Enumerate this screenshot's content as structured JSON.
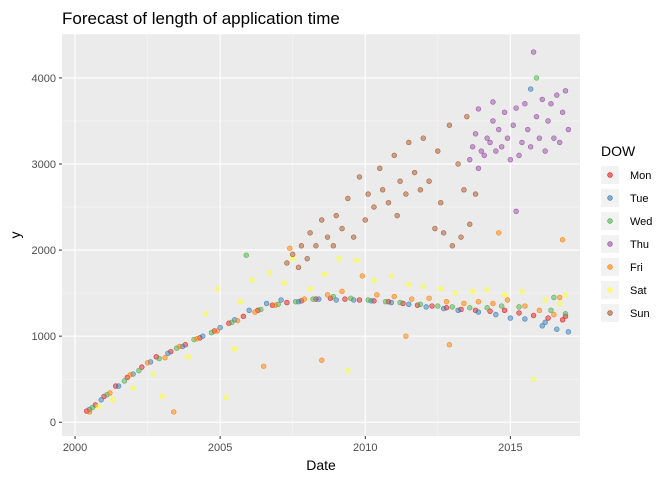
{
  "colors": {
    "panel_bg": "#EBEBEB",
    "grid_major": "#FFFFFF",
    "grid_minor": "#F5F5F5",
    "tick_mark": "#333333"
  },
  "chart_data": {
    "type": "scatter",
    "title": "Forecast of length of application time",
    "xlabel": "Date",
    "ylabel": "y",
    "xlim": [
      1999.55,
      2017.4
    ],
    "ylim": [
      -160,
      4510
    ],
    "x_ticks": [
      "2000",
      "2005",
      "2010",
      "2015"
    ],
    "x_tick_values": [
      2000,
      2005,
      2010,
      2015
    ],
    "y_ticks": [
      "0",
      "1000",
      "2000",
      "3000",
      "4000"
    ],
    "y_tick_values": [
      0,
      1000,
      2000,
      3000,
      4000
    ],
    "grid": true,
    "legend": {
      "title": "DOW",
      "position": "right"
    },
    "point_opacity": 0.5,
    "series": [
      {
        "name": "Mon",
        "color": "#E41A1C",
        "points": [
          [
            2000.4,
            130
          ],
          [
            2000.7,
            200
          ],
          [
            2001.0,
            300
          ],
          [
            2001.4,
            420
          ],
          [
            2001.8,
            520
          ],
          [
            2002.3,
            640
          ],
          [
            2002.8,
            760
          ],
          [
            2003.3,
            820
          ],
          [
            2003.8,
            900
          ],
          [
            2004.3,
            980
          ],
          [
            2004.8,
            1060
          ],
          [
            2005.3,
            1150
          ],
          [
            2005.8,
            1230
          ],
          [
            2006.3,
            1300
          ],
          [
            2006.8,
            1360
          ],
          [
            2007.3,
            1390
          ],
          [
            2007.8,
            1410
          ],
          [
            2008.3,
            1430
          ],
          [
            2008.8,
            1440
          ],
          [
            2009.3,
            1430
          ],
          [
            2009.8,
            1420
          ],
          [
            2010.3,
            1410
          ],
          [
            2010.8,
            1400
          ],
          [
            2011.3,
            1380
          ],
          [
            2011.8,
            1360
          ],
          [
            2012.3,
            1350
          ],
          [
            2012.8,
            1330
          ],
          [
            2013.3,
            1310
          ],
          [
            2013.8,
            1300
          ],
          [
            2014.3,
            1290
          ],
          [
            2014.8,
            1300
          ],
          [
            2015.3,
            1270
          ],
          [
            2015.8,
            1240
          ],
          [
            2016.3,
            1210
          ],
          [
            2016.8,
            1190
          ],
          [
            2016.9,
            1230
          ]
        ]
      },
      {
        "name": "Tue",
        "color": "#377EB8",
        "points": [
          [
            2000.5,
            150
          ],
          [
            2000.9,
            260
          ],
          [
            2001.5,
            420
          ],
          [
            2002.0,
            560
          ],
          [
            2002.6,
            700
          ],
          [
            2003.2,
            800
          ],
          [
            2003.7,
            880
          ],
          [
            2004.4,
            1000
          ],
          [
            2005.0,
            1100
          ],
          [
            2005.5,
            1190
          ],
          [
            2006.0,
            1300
          ],
          [
            2006.6,
            1380
          ],
          [
            2007.1,
            1420
          ],
          [
            2007.7,
            1400
          ],
          [
            2008.4,
            1430
          ],
          [
            2009.0,
            1420
          ],
          [
            2009.6,
            1420
          ],
          [
            2010.2,
            1410
          ],
          [
            2010.9,
            1390
          ],
          [
            2011.5,
            1370
          ],
          [
            2012.1,
            1340
          ],
          [
            2012.7,
            1320
          ],
          [
            2013.2,
            1300
          ],
          [
            2013.9,
            1280
          ],
          [
            2014.5,
            1250
          ],
          [
            2015.0,
            1210
          ],
          [
            2015.5,
            1200
          ],
          [
            2015.7,
            3870
          ],
          [
            2016.1,
            1120
          ],
          [
            2016.6,
            1080
          ],
          [
            2017.0,
            1050
          ],
          [
            2016.2,
            1160
          ]
        ]
      },
      {
        "name": "Wed",
        "color": "#4DAF4A",
        "points": [
          [
            2000.6,
            170
          ],
          [
            2001.1,
            320
          ],
          [
            2001.7,
            480
          ],
          [
            2002.2,
            600
          ],
          [
            2002.9,
            740
          ],
          [
            2003.5,
            860
          ],
          [
            2004.1,
            960
          ],
          [
            2004.7,
            1040
          ],
          [
            2005.4,
            1160
          ],
          [
            2005.9,
            1940
          ],
          [
            2006.4,
            1310
          ],
          [
            2007.0,
            1370
          ],
          [
            2007.6,
            1400
          ],
          [
            2008.2,
            1430
          ],
          [
            2008.9,
            1460
          ],
          [
            2009.5,
            1440
          ],
          [
            2010.1,
            1420
          ],
          [
            2010.7,
            1400
          ],
          [
            2011.2,
            1390
          ],
          [
            2011.9,
            1370
          ],
          [
            2012.5,
            1350
          ],
          [
            2013.0,
            1340
          ],
          [
            2013.6,
            1330
          ],
          [
            2014.2,
            1330
          ],
          [
            2014.7,
            1350
          ],
          [
            2015.3,
            1340
          ],
          [
            2015.9,
            4000
          ],
          [
            2016.4,
            1300
          ],
          [
            2016.9,
            1260
          ],
          [
            2016.5,
            1450
          ]
        ]
      },
      {
        "name": "Thu",
        "color": "#984EA3",
        "points": [
          [
            2013.6,
            3050
          ],
          [
            2013.7,
            3200
          ],
          [
            2013.8,
            3350
          ],
          [
            2013.9,
            2950
          ],
          [
            2014.0,
            3150
          ],
          [
            2014.1,
            3100
          ],
          [
            2014.2,
            3300
          ],
          [
            2014.3,
            3250
          ],
          [
            2014.4,
            3500
          ],
          [
            2014.5,
            3150
          ],
          [
            2014.6,
            3400
          ],
          [
            2014.7,
            3200
          ],
          [
            2014.8,
            3600
          ],
          [
            2014.9,
            3300
          ],
          [
            2015.0,
            3050
          ],
          [
            2015.1,
            3450
          ],
          [
            2015.2,
            3650
          ],
          [
            2015.3,
            3100
          ],
          [
            2015.4,
            3250
          ],
          [
            2015.5,
            3700
          ],
          [
            2015.6,
            3400
          ],
          [
            2015.7,
            3200
          ],
          [
            2015.8,
            4300
          ],
          [
            2015.9,
            3550
          ],
          [
            2016.0,
            3300
          ],
          [
            2016.1,
            3750
          ],
          [
            2016.2,
            3150
          ],
          [
            2016.3,
            3500
          ],
          [
            2016.4,
            3700
          ],
          [
            2016.5,
            3300
          ],
          [
            2016.6,
            3800
          ],
          [
            2016.7,
            3250
          ],
          [
            2016.8,
            3600
          ],
          [
            2016.9,
            3850
          ],
          [
            2017.0,
            3400
          ],
          [
            2015.2,
            2450
          ],
          [
            2013.9,
            3640
          ],
          [
            2014.4,
            3720
          ]
        ]
      },
      {
        "name": "Fri",
        "color": "#FF7F00",
        "points": [
          [
            2000.5,
            120
          ],
          [
            2001.2,
            340
          ],
          [
            2001.9,
            550
          ],
          [
            2002.5,
            690
          ],
          [
            2003.1,
            750
          ],
          [
            2003.4,
            120
          ],
          [
            2003.6,
            880
          ],
          [
            2004.2,
            970
          ],
          [
            2004.9,
            1060
          ],
          [
            2005.6,
            1180
          ],
          [
            2006.2,
            1280
          ],
          [
            2006.5,
            650
          ],
          [
            2006.9,
            1360
          ],
          [
            2007.4,
            2020
          ],
          [
            2007.9,
            1430
          ],
          [
            2008.5,
            720
          ],
          [
            2008.7,
            1480
          ],
          [
            2009.2,
            1520
          ],
          [
            2009.9,
            1700
          ],
          [
            2010.4,
            1480
          ],
          [
            2011.0,
            1460
          ],
          [
            2011.6,
            1430
          ],
          [
            2012.2,
            1440
          ],
          [
            2012.8,
            1400
          ],
          [
            2013.4,
            1380
          ],
          [
            2013.9,
            1400
          ],
          [
            2014.4,
            1380
          ],
          [
            2014.9,
            1420
          ],
          [
            2015.5,
            1350
          ],
          [
            2016.0,
            1300
          ],
          [
            2016.5,
            1250
          ],
          [
            2016.8,
            2120
          ],
          [
            2016.7,
            1450
          ],
          [
            2014.6,
            2200
          ],
          [
            2011.4,
            1000
          ],
          [
            2012.9,
            900
          ]
        ]
      },
      {
        "name": "Sat",
        "color": "#FFFF33",
        "points": [
          [
            2000.8,
            180
          ],
          [
            2001.3,
            260
          ],
          [
            2002.0,
            400
          ],
          [
            2002.7,
            560
          ],
          [
            2003.0,
            300
          ],
          [
            2003.9,
            760
          ],
          [
            2004.5,
            1260
          ],
          [
            2004.9,
            1550
          ],
          [
            2005.2,
            290
          ],
          [
            2005.7,
            1400
          ],
          [
            2006.1,
            1650
          ],
          [
            2006.7,
            1740
          ],
          [
            2007.2,
            1620
          ],
          [
            2007.5,
            1900
          ],
          [
            2008.1,
            1550
          ],
          [
            2008.6,
            1720
          ],
          [
            2009.1,
            1900
          ],
          [
            2009.7,
            1880
          ],
          [
            2010.3,
            1650
          ],
          [
            2010.9,
            1700
          ],
          [
            2011.5,
            1600
          ],
          [
            2012.0,
            1580
          ],
          [
            2012.6,
            1550
          ],
          [
            2013.1,
            1500
          ],
          [
            2013.7,
            1520
          ],
          [
            2014.2,
            1540
          ],
          [
            2014.8,
            1480
          ],
          [
            2015.4,
            1520
          ],
          [
            2015.8,
            500
          ],
          [
            2016.2,
            1420
          ],
          [
            2016.7,
            1380
          ],
          [
            2016.9,
            1480
          ],
          [
            2009.4,
            600
          ],
          [
            2005.5,
            850
          ]
        ]
      },
      {
        "name": "Sun",
        "color": "#A65628",
        "points": [
          [
            2007.3,
            1850
          ],
          [
            2007.5,
            1950
          ],
          [
            2007.7,
            1800
          ],
          [
            2007.8,
            2050
          ],
          [
            2008.0,
            1900
          ],
          [
            2008.1,
            2200
          ],
          [
            2008.3,
            2050
          ],
          [
            2008.5,
            2350
          ],
          [
            2008.7,
            2150
          ],
          [
            2008.9,
            2050
          ],
          [
            2009.0,
            2400
          ],
          [
            2009.2,
            2250
          ],
          [
            2009.4,
            2600
          ],
          [
            2009.6,
            2150
          ],
          [
            2009.8,
            2850
          ],
          [
            2010.0,
            2350
          ],
          [
            2010.1,
            2650
          ],
          [
            2010.3,
            2500
          ],
          [
            2010.5,
            2950
          ],
          [
            2010.6,
            2700
          ],
          [
            2010.8,
            2550
          ],
          [
            2011.0,
            3100
          ],
          [
            2011.2,
            2800
          ],
          [
            2011.4,
            2650
          ],
          [
            2011.5,
            3250
          ],
          [
            2011.7,
            2900
          ],
          [
            2011.9,
            2700
          ],
          [
            2012.0,
            3300
          ],
          [
            2012.2,
            2800
          ],
          [
            2012.4,
            2250
          ],
          [
            2012.5,
            3150
          ],
          [
            2012.7,
            2200
          ],
          [
            2012.9,
            3450
          ],
          [
            2013.0,
            2050
          ],
          [
            2013.2,
            3000
          ],
          [
            2013.3,
            2150
          ],
          [
            2013.5,
            3550
          ],
          [
            2013.6,
            2300
          ],
          [
            2013.8,
            2650
          ],
          [
            2012.6,
            2550
          ],
          [
            2011.1,
            2400
          ],
          [
            2013.4,
            2700
          ]
        ]
      }
    ]
  }
}
